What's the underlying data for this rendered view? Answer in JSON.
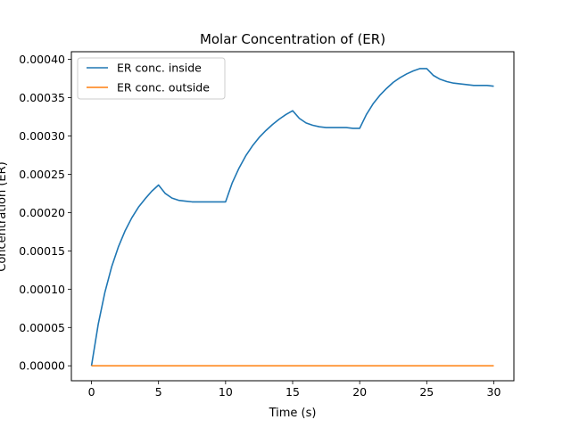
{
  "chart_data": {
    "type": "line",
    "title": "Molar Concentration of (ER)",
    "xlabel": "Time (s)",
    "ylabel": "Concentration (ER)",
    "xlim": [
      -1.5,
      31.5
    ],
    "ylim": [
      -1.95e-05,
      0.00041
    ],
    "xticks": [
      0,
      5,
      10,
      15,
      20,
      25,
      30
    ],
    "xtick_labels": [
      "0",
      "5",
      "10",
      "15",
      "20",
      "25",
      "30"
    ],
    "yticks": [
      0,
      5e-05,
      0.0001,
      0.00015,
      0.0002,
      0.00025,
      0.0003,
      0.00035,
      0.0004
    ],
    "ytick_labels": [
      "0.00000",
      "0.00005",
      "0.00010",
      "0.00015",
      "0.00020",
      "0.00025",
      "0.00030",
      "0.00035",
      "0.00040"
    ],
    "grid": false,
    "legend_position": "upper-left",
    "series": [
      {
        "name": "ER conc. inside",
        "color": "#1f77b4",
        "x": [
          0,
          0.5,
          1,
          1.5,
          2,
          2.5,
          3,
          3.5,
          4,
          4.5,
          5,
          5.5,
          6,
          6.5,
          7,
          7.5,
          8,
          8.5,
          9,
          9.5,
          10,
          10.5,
          11,
          11.5,
          12,
          12.5,
          13,
          13.5,
          14,
          14.5,
          15,
          15.5,
          16,
          16.5,
          17,
          17.5,
          18,
          18.5,
          19,
          19.5,
          20,
          20.5,
          21,
          21.5,
          22,
          22.5,
          23,
          23.5,
          24,
          24.5,
          25,
          25.5,
          26,
          26.5,
          27,
          27.5,
          28,
          28.5,
          29,
          29.5,
          30
        ],
        "values": [
          0,
          5.4e-05,
          9.6e-05,
          0.000129,
          0.000155,
          0.000176,
          0.000193,
          0.000207,
          0.000218,
          0.000228,
          0.000236,
          0.000225,
          0.000219,
          0.000216,
          0.000215,
          0.000214,
          0.000214,
          0.000214,
          0.000214,
          0.000214,
          0.000214,
          0.000239,
          0.000258,
          0.000274,
          0.000287,
          0.000298,
          0.000307,
          0.000315,
          0.000322,
          0.000328,
          0.000333,
          0.000323,
          0.000317,
          0.000314,
          0.000312,
          0.000311,
          0.000311,
          0.000311,
          0.000311,
          0.00031,
          0.00031,
          0.000328,
          0.000342,
          0.000353,
          0.000362,
          0.00037,
          0.000376,
          0.000381,
          0.000385,
          0.000388,
          0.000388,
          0.000379,
          0.000374,
          0.000371,
          0.000369,
          0.000368,
          0.000367,
          0.000366,
          0.000366,
          0.000366,
          0.000365
        ]
      },
      {
        "name": "ER conc. outside",
        "color": "#ff7f0e",
        "x": [
          0,
          30
        ],
        "values": [
          0,
          0
        ]
      }
    ]
  }
}
